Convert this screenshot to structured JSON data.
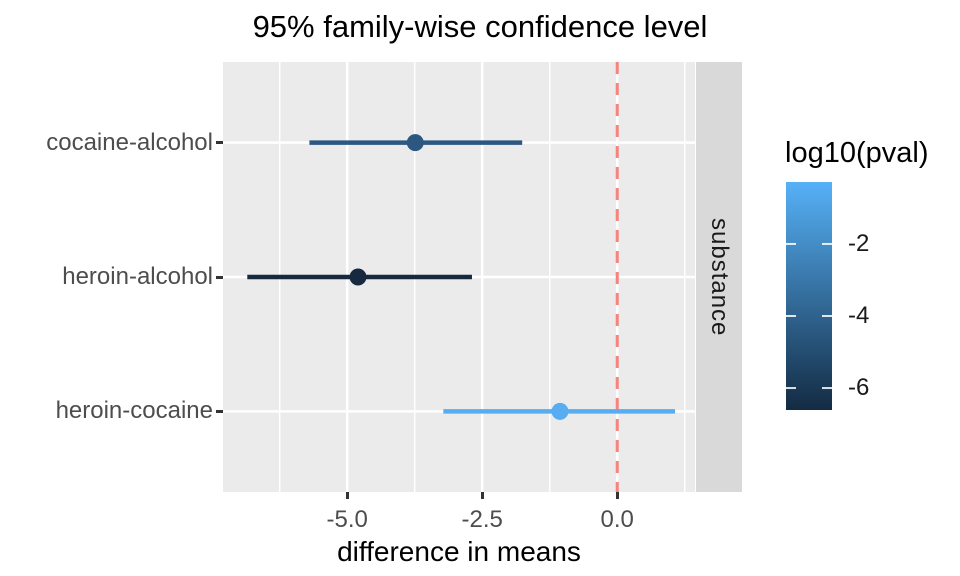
{
  "title": "95% family-wise confidence level",
  "chart_data": {
    "type": "scatter",
    "subtype": "dot-with-errorbar",
    "title": "95% family-wise confidence level",
    "xlabel": "difference in means",
    "ylabel": "",
    "facet_strip": "substance",
    "xlim": [
      -7.3,
      1.44
    ],
    "x_ticks": [
      -5.0,
      -2.5,
      0.0
    ],
    "x_tick_labels": [
      "-5.0",
      "-2.5",
      "0.0"
    ],
    "x_minor_gridlines": [
      -6.25,
      -3.75,
      -1.25,
      1.25
    ],
    "grid": "on",
    "categories": [
      "cocaine-alcohol",
      "heroin-alcohol",
      "heroin-cocaine"
    ],
    "rows": [
      {
        "label": "cocaine-alcohol",
        "diff": -3.74,
        "lower": -5.7,
        "upper": -1.76,
        "log10_pval": -4.45,
        "color": "#2b5780"
      },
      {
        "label": "heroin-alcohol",
        "diff": -4.8,
        "lower": -6.85,
        "upper": -2.69,
        "log10_pval": -6.6,
        "color": "#17293e"
      },
      {
        "label": "heroin-cocaine",
        "diff": -1.06,
        "lower": -3.22,
        "upper": 1.07,
        "log10_pval": -0.29,
        "color": "#57acf2"
      }
    ],
    "reference_line": {
      "x": 0.0,
      "style": "dashed",
      "color": "#f8837c"
    },
    "legend": {
      "title": "log10(pval)",
      "position": "right",
      "orientation": "vertical-colorbar",
      "vmax": -0.28,
      "vmin": -6.61,
      "ticks": [
        -2,
        -4,
        -6
      ],
      "tick_labels": [
        "-2",
        "-4",
        "-6"
      ],
      "color_high": "#56b1f7",
      "color_low": "#132b43"
    }
  },
  "colors": {
    "panel_background": "#ebebeb",
    "strip_background": "#d9d9d9",
    "gridline": "#ffffff",
    "axis_tick": "#333333",
    "axis_tick_label": "#4d4d4d",
    "text": "#000000"
  }
}
